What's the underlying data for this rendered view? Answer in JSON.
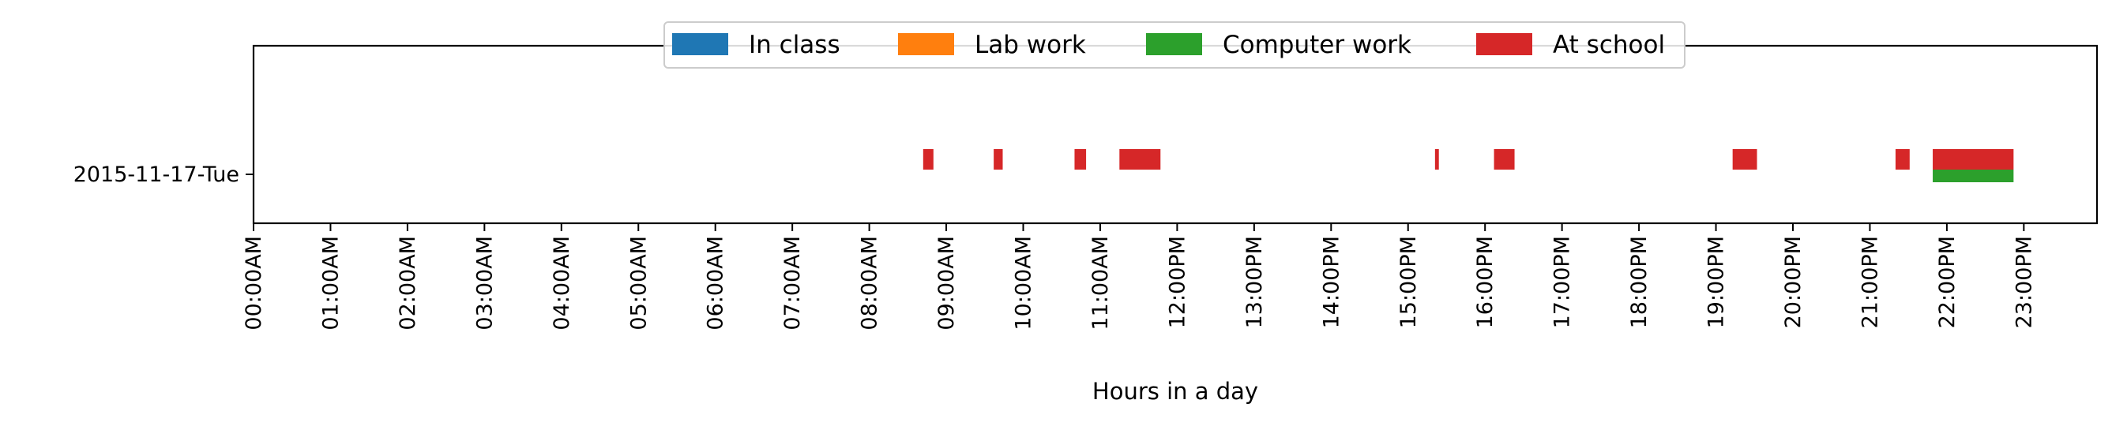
{
  "chart_data": {
    "type": "timeline",
    "title": "",
    "xlabel": "Hours in a day",
    "ylabel": "",
    "xlim": [
      0,
      24
    ],
    "grid": false,
    "legend_placement": "upper-center",
    "x_ticks": [
      "00:00AM",
      "01:00AM",
      "02:00AM",
      "03:00AM",
      "04:00AM",
      "05:00AM",
      "06:00AM",
      "07:00AM",
      "08:00AM",
      "09:00AM",
      "10:00AM",
      "11:00AM",
      "12:00PM",
      "13:00PM",
      "14:00PM",
      "15:00PM",
      "16:00PM",
      "17:00PM",
      "18:00PM",
      "19:00PM",
      "20:00PM",
      "21:00PM",
      "22:00PM",
      "23:00PM"
    ],
    "categories": [
      "2015-11-17-Tue"
    ],
    "series": [
      {
        "name": "In class",
        "color": "#1f77b4",
        "intervals": []
      },
      {
        "name": "Lab work",
        "color": "#ff7f0e",
        "intervals": []
      },
      {
        "name": "Computer work",
        "color": "#2ca02c",
        "intervals": [
          {
            "start": "21:49",
            "end": "22:52"
          }
        ]
      },
      {
        "name": "At school",
        "color": "#d62728",
        "intervals": [
          {
            "start": "08:42",
            "end": "08:50"
          },
          {
            "start": "09:37",
            "end": "09:44"
          },
          {
            "start": "10:40",
            "end": "10:49"
          },
          {
            "start": "11:15",
            "end": "11:47"
          },
          {
            "start": "15:21",
            "end": "15:24"
          },
          {
            "start": "16:07",
            "end": "16:23"
          },
          {
            "start": "19:13",
            "end": "19:32"
          },
          {
            "start": "21:20",
            "end": "21:31"
          },
          {
            "start": "21:49",
            "end": "22:52"
          }
        ]
      }
    ]
  }
}
